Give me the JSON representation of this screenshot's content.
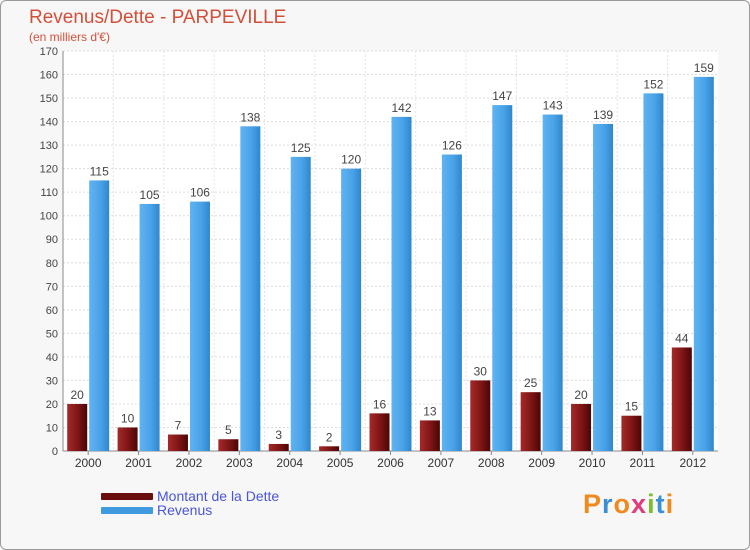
{
  "title": "Revenus/Dette - PARPEVILLE",
  "subtitle": "(en milliers d'€)",
  "colors": {
    "title": "#d2503a",
    "dette": "#8b1a1a",
    "revenus": "#4aa3e8",
    "legend_text": "#4a55d8"
  },
  "chart_data": {
    "type": "bar",
    "title": "Revenus/Dette - PARPEVILLE",
    "ylabel": "(en milliers d'€)",
    "xlabel": "",
    "ylim": [
      0,
      170
    ],
    "yticks": [
      0,
      10,
      20,
      30,
      40,
      50,
      60,
      70,
      80,
      90,
      100,
      110,
      120,
      130,
      140,
      150,
      160,
      170
    ],
    "grid": true,
    "categories": [
      "2000",
      "2001",
      "2002",
      "2003",
      "2004",
      "2005",
      "2006",
      "2007",
      "2008",
      "2009",
      "2010",
      "2011",
      "2012"
    ],
    "series": [
      {
        "name": "Montant de la Dette",
        "values": [
          20,
          10,
          7,
          5,
          3,
          2,
          16,
          13,
          30,
          25,
          20,
          15,
          44
        ]
      },
      {
        "name": "Revenus",
        "values": [
          115,
          105,
          106,
          138,
          125,
          120,
          142,
          126,
          147,
          143,
          139,
          152,
          159
        ]
      }
    ],
    "legend_position": "bottom-left"
  },
  "legend": [
    {
      "label": "Montant de la Dette"
    },
    {
      "label": "Revenus"
    }
  ],
  "logo": {
    "letters": [
      "P",
      "r",
      "o",
      "x",
      "i",
      "t",
      "i"
    ]
  }
}
